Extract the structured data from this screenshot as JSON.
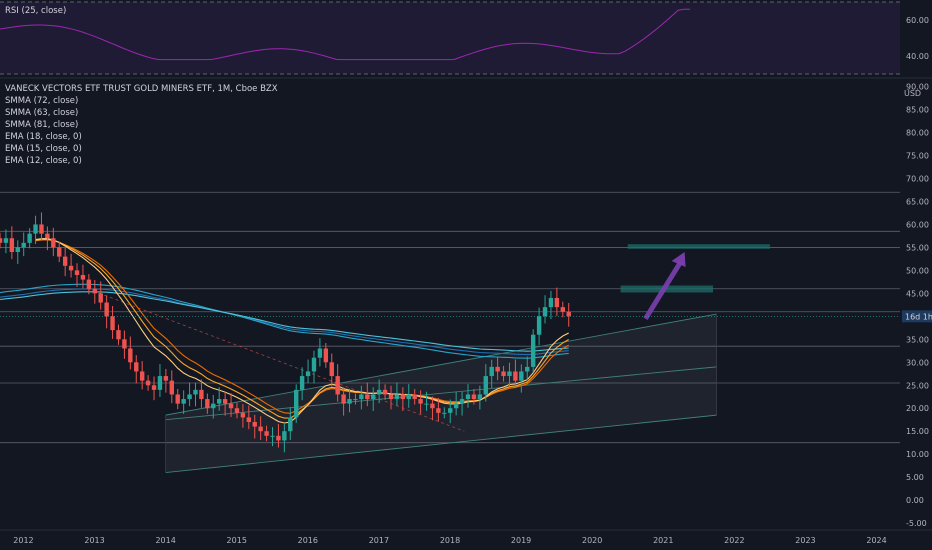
{
  "rsi_pane": {
    "legend": "RSI (25, close)",
    "ticks": [
      60,
      40
    ],
    "tick_labels": [
      "60.00",
      "40.00"
    ],
    "band_color": "#2a1f45",
    "line_color": "#9c27b0"
  },
  "main_pane": {
    "symbol_title": "VANECK VECTORS ETF TRUST GOLD MINERS ETF, 1M, Cboe BZX",
    "indicators": [
      "SMMA (72, close)",
      "SMMA (63, close)",
      "SMMA (81, close)",
      "EMA (18, close, 0)",
      "EMA (15, close, 0)",
      "EMA (12, close, 0)"
    ],
    "currency_label": "USD",
    "countdown_badge": "16d 1h",
    "up_color": "#26a69a",
    "down_color": "#ef5350"
  },
  "chart_data": {
    "type": "candlestick",
    "y_ticks": [
      90,
      85,
      80,
      75,
      70,
      65,
      60,
      55,
      50,
      45,
      40,
      35,
      30,
      25,
      20,
      15,
      10,
      5,
      0,
      -5
    ],
    "y_tick_labels": [
      "90.00",
      "85.00",
      "80.00",
      "75.00",
      "70.00",
      "65.00",
      "60.00",
      "55.00",
      "50.00",
      "45.00",
      "40.00",
      "35.00",
      "30.00",
      "25.00",
      "20.00",
      "15.00",
      "10.00",
      "5.00",
      "0.00",
      "-5.00"
    ],
    "ylim": [
      -6.5,
      91
    ],
    "x_start": 2011.67,
    "x_end": 2024.33,
    "x_ticks": [
      2012,
      2013,
      2014,
      2015,
      2016,
      2017,
      2018,
      2019,
      2020,
      2021,
      2022,
      2023,
      2024
    ],
    "x_tick_labels": [
      "2012",
      "2013",
      "2014",
      "2015",
      "2016",
      "2017",
      "2018",
      "2019",
      "2020",
      "2021",
      "2022",
      "2023",
      "2024"
    ],
    "monthly_closes": [
      56,
      57,
      54,
      55,
      56,
      58,
      60,
      58,
      57,
      55,
      53,
      51,
      50,
      49,
      48,
      46,
      45,
      43,
      40,
      37,
      35,
      33,
      30,
      28,
      26,
      25,
      24,
      27,
      26,
      23,
      21,
      22,
      23,
      24,
      22,
      20,
      21,
      22,
      21,
      20,
      19,
      18,
      17,
      16,
      15,
      14,
      14,
      13,
      15,
      18,
      24,
      27,
      28,
      31,
      33,
      30,
      27,
      23,
      21,
      22,
      22,
      23,
      22,
      23,
      24,
      23,
      22,
      23,
      22,
      23,
      22,
      21,
      21,
      20,
      19,
      19,
      20,
      21,
      22,
      23,
      22,
      23,
      27,
      29,
      28,
      27,
      28,
      26,
      28,
      29,
      36,
      40,
      42,
      44,
      42,
      41,
      40
    ],
    "horizontal_levels": [
      67,
      58.5,
      55,
      46,
      41,
      33.5,
      25.5,
      12.5
    ],
    "channel": {
      "top_start": [
        2014.0,
        18.5
      ],
      "top_end": [
        2021.75,
        40.5
      ],
      "bottom_start": [
        2014.0,
        6
      ],
      "bottom_end": [
        2021.75,
        18.5
      ],
      "mid_start": [
        2014.0,
        17.5
      ],
      "mid_end": [
        2021.75,
        29
      ]
    },
    "dashed_trend": {
      "start": [
        2012.9,
        46
      ],
      "end": [
        2018.2,
        15
      ]
    },
    "target_boxes": [
      {
        "x0": 2020.4,
        "x1": 2021.7,
        "y0": 45.2,
        "y1": 46.7
      },
      {
        "x0": 2020.5,
        "x1": 2022.5,
        "y0": 54.7,
        "y1": 55.7
      }
    ],
    "arrow": {
      "from": [
        2020.75,
        39.5
      ],
      "to": [
        2021.3,
        54
      ]
    },
    "last_price": 40
  }
}
